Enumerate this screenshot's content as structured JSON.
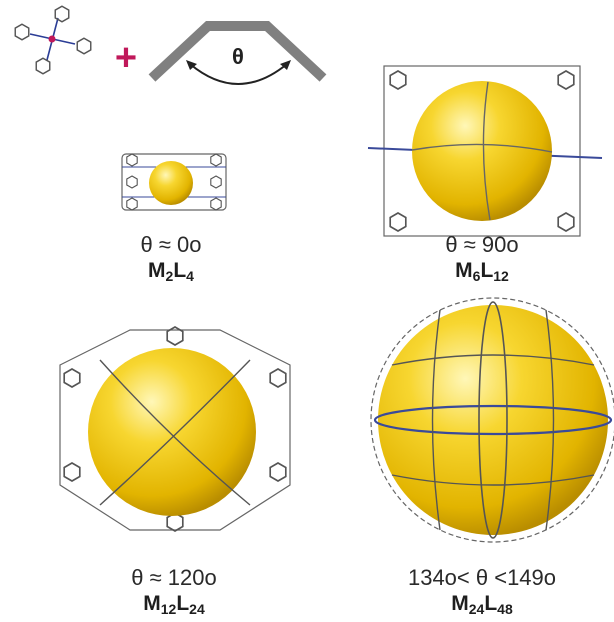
{
  "bend_angle_symbol": "θ",
  "plus_sign": "+",
  "colors": {
    "sphere": "#f5cf1e",
    "metal_ion": "#c0185a",
    "bend_bar": "#808080",
    "framework": "#555555"
  },
  "cages": [
    {
      "angle_label": "θ ≈ 0o",
      "formula": {
        "M_sub": "2",
        "L_sub": "4"
      }
    },
    {
      "angle_label": "θ ≈ 90o",
      "formula": {
        "M_sub": "6",
        "L_sub": "12"
      }
    },
    {
      "angle_label": "θ ≈ 120o",
      "formula": {
        "M_sub": "12",
        "L_sub": "24"
      }
    },
    {
      "angle_label": "134o< θ <149o",
      "formula": {
        "M_sub": "24",
        "L_sub": "48"
      }
    }
  ]
}
